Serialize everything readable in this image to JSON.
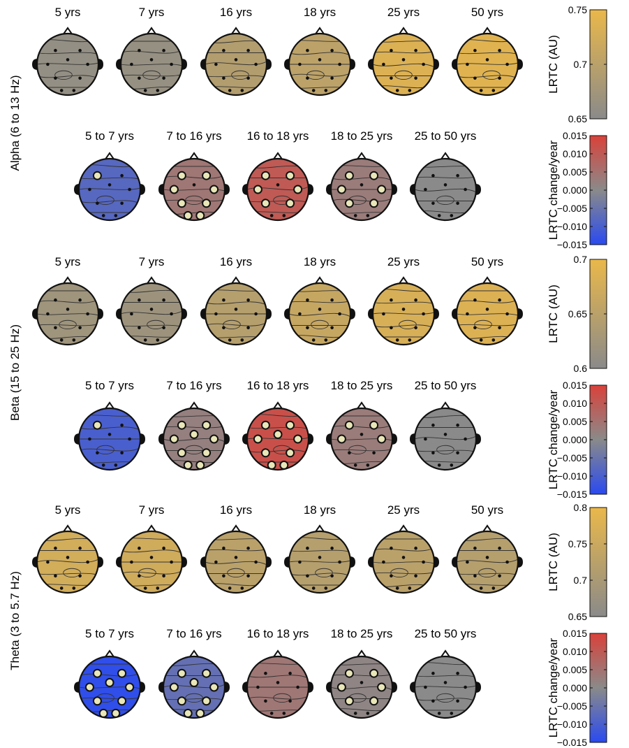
{
  "bands": [
    {
      "name": "Alpha (6 to 13 Hz)",
      "ages": [
        "5 yrs",
        "7 yrs",
        "16 yrs",
        "18 yrs",
        "25 yrs",
        "50 yrs"
      ],
      "age_levels": [
        0.1,
        0.12,
        0.42,
        0.52,
        0.85,
        0.9
      ],
      "transitions": [
        "5 to 7 yrs",
        "7 to 16 yrs",
        "16 to 18 yrs",
        "18 to 25 yrs",
        "25 to 50 yrs"
      ],
      "transition_rates": [
        -0.008,
        0.004,
        0.01,
        0.003,
        0.0
      ],
      "significant_electrodes": [
        1,
        8,
        6,
        6,
        0
      ],
      "abs_cbar": {
        "title": "LRTC (AU)",
        "ticks": [
          "0.75",
          "0.7",
          "0.65"
        ]
      },
      "rate_cbar": {
        "title": "LRTC change/year",
        "ticks": [
          "0.015",
          "0.010",
          "0.005",
          "0.000",
          "−0.005",
          "−0.010",
          "−0.015"
        ]
      }
    },
    {
      "name": "Beta (15 to 25 Hz)",
      "ages": [
        "5 yrs",
        "7 yrs",
        "16 yrs",
        "18 yrs",
        "25 yrs",
        "50 yrs"
      ],
      "age_levels": [
        0.22,
        0.2,
        0.45,
        0.62,
        0.8,
        0.85
      ],
      "transitions": [
        "5 to 7 yrs",
        "7 to 16 yrs",
        "16 to 18 yrs",
        "18 to 25 yrs",
        "25 to 50 yrs"
      ],
      "transition_rates": [
        -0.01,
        0.002,
        0.012,
        0.003,
        0.0
      ],
      "significant_electrodes": [
        1,
        9,
        9,
        4,
        0
      ],
      "abs_cbar": {
        "title": "LRTC (AU)",
        "ticks": [
          "0.7",
          "0.65",
          "0.6"
        ]
      },
      "rate_cbar": {
        "title": "LRTC change/year",
        "ticks": [
          "0.015",
          "0.010",
          "0.005",
          "0.000",
          "−0.005",
          "−0.010",
          "−0.015"
        ]
      }
    },
    {
      "name": "Theta (3 to 5.7 Hz)",
      "ages": [
        "5 yrs",
        "7 yrs",
        "16 yrs",
        "18 yrs",
        "25 yrs",
        "50 yrs"
      ],
      "age_levels": [
        0.75,
        0.72,
        0.5,
        0.45,
        0.5,
        0.45
      ],
      "transitions": [
        "5 to 7 yrs",
        "7 to 16 yrs",
        "16 to 18 yrs",
        "18 to 25 yrs",
        "25 to 50 yrs"
      ],
      "transition_rates": [
        -0.014,
        -0.006,
        0.004,
        0.001,
        0.0
      ],
      "significant_electrodes": [
        9,
        9,
        0,
        6,
        0
      ],
      "abs_cbar": {
        "title": "LRTC (AU)",
        "ticks": [
          "0.8",
          "0.75",
          "0.7",
          "0.65"
        ]
      },
      "rate_cbar": {
        "title": "LRTC change/year",
        "ticks": [
          "0.015",
          "0.010",
          "0.005",
          "0.000",
          "−0.005",
          "−0.010",
          "−0.015"
        ]
      }
    }
  ],
  "colors": {
    "gray": "#8a8a8a",
    "gold": "#eab84a",
    "red": "#d9423a",
    "blue": "#2a4af0",
    "sig_fill": "#e9e6b8"
  }
}
